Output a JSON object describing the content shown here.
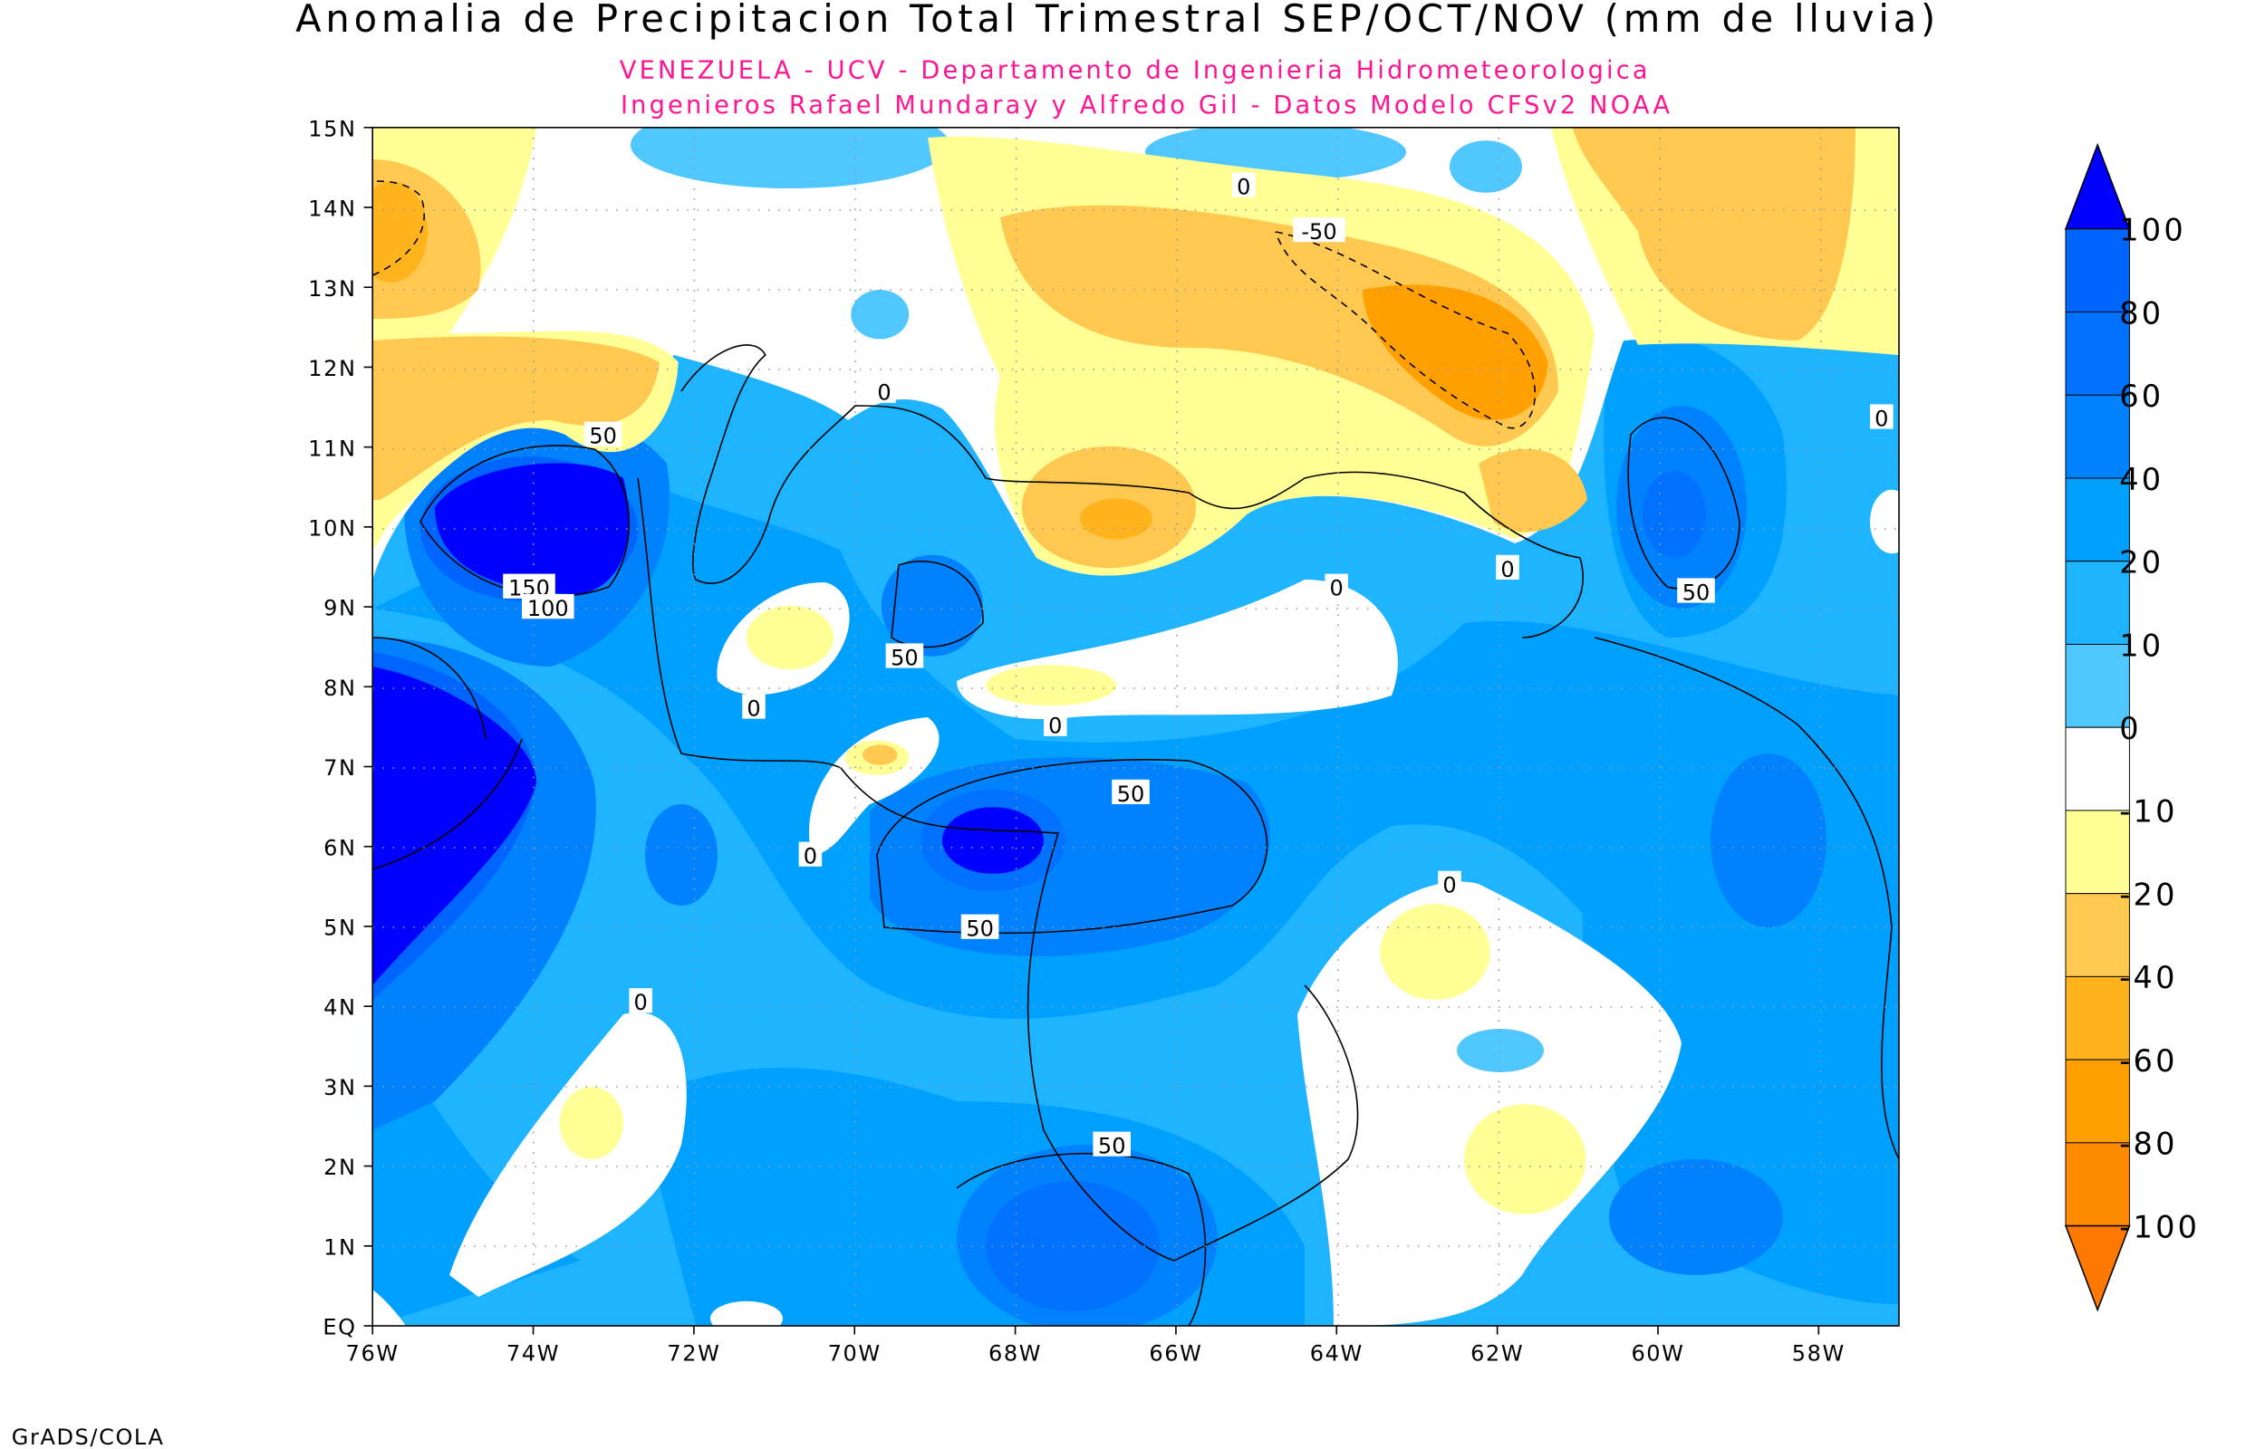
{
  "title": "Anomalia de Precipitacion Total Trimestral SEP/OCT/NOV (mm de lluvia)",
  "subtitle1": "VENEZUELA - UCV - Departamento de Ingenieria Hidrometeorologica",
  "subtitle2": "Ingenieros Rafael Mundaray y Alfredo Gil - Datos Modelo CFSv2 NOAA",
  "footer": "GrADS/COLA",
  "map": {
    "lon_range": [
      -76,
      -57
    ],
    "lat_range": [
      0,
      15
    ],
    "x_ticks": [
      "76W",
      "74W",
      "72W",
      "70W",
      "68W",
      "66W",
      "64W",
      "62W",
      "60W",
      "58W"
    ],
    "y_ticks": [
      "EQ",
      "1N",
      "2N",
      "3N",
      "4N",
      "5N",
      "6N",
      "7N",
      "8N",
      "9N",
      "10N",
      "11N",
      "12N",
      "13N",
      "14N",
      "15N"
    ],
    "grid": "dotted",
    "contour_labels": [
      "0",
      "0",
      "0",
      "0",
      "0",
      "0",
      "0",
      "0",
      "0",
      "0",
      "-50",
      "50",
      "50",
      "50",
      "50",
      "50",
      "50",
      "150",
      "100"
    ]
  },
  "colorbar": {
    "labels": [
      "100",
      "80",
      "60",
      "40",
      "20",
      "10",
      "0",
      "-10",
      "-20",
      "-40",
      "-60",
      "-80",
      "-100"
    ],
    "colors": [
      "#0000ff",
      "#0064ff",
      "#0072ff",
      "#0082ff",
      "#00a0ff",
      "#1eb4ff",
      "#50c8ff",
      "#ffffff",
      "#ffff96",
      "#ffc850",
      "#ffb41e",
      "#ffa000",
      "#ff8c00",
      "#ff7800"
    ]
  }
}
